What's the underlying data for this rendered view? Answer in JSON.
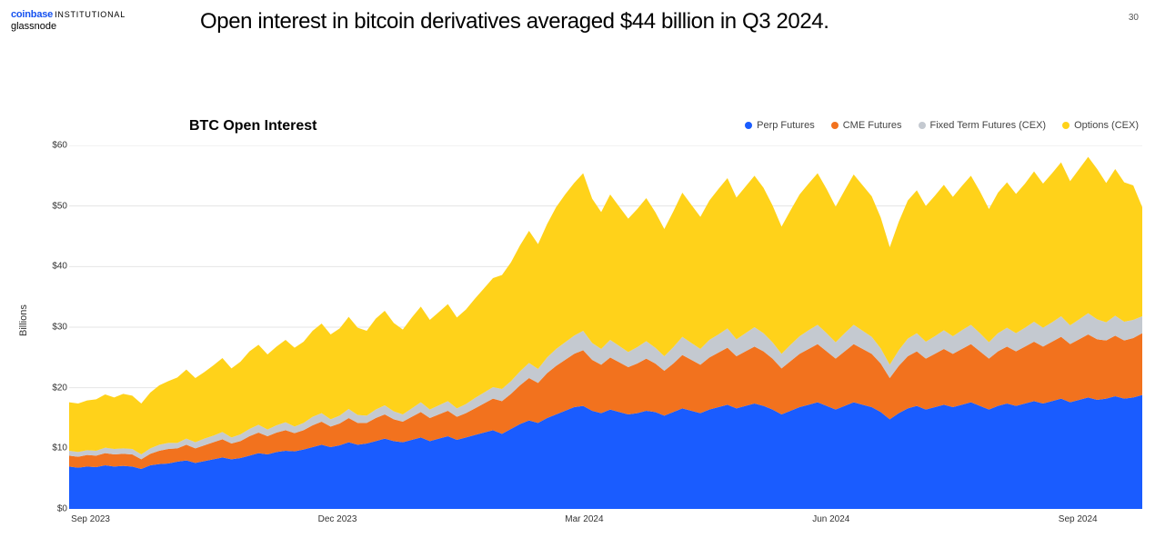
{
  "page_number": "30",
  "logo": {
    "coinbase": "coinbase",
    "institutional": "INSTITUTIONAL",
    "glassnode": "glassnode"
  },
  "headline": "Open interest in bitcoin derivatives averaged $44 billion in Q3 2024.",
  "chart": {
    "type": "stacked-area",
    "title": "BTC Open Interest",
    "background_color": "#ffffff",
    "grid_color": "#e5e5e5",
    "baseline_color": "#bbbbbb",
    "ylabel": "Billions",
    "ylim": [
      0,
      60
    ],
    "ytick_step": 10,
    "ytick_labels": [
      "$0",
      "$10",
      "$20",
      "$30",
      "$40",
      "$50",
      "$60"
    ],
    "xtick_labels": [
      "Sep 2023",
      "Dec 2023",
      "Mar 2024",
      "Jun 2024",
      "Sep 2024"
    ],
    "xtick_positions": [
      0.02,
      0.25,
      0.48,
      0.71,
      0.94
    ],
    "n_points": 120,
    "legend": [
      {
        "label": "Perp Futures",
        "color": "#1a5cff"
      },
      {
        "label": "CME Futures",
        "color": "#f2721e"
      },
      {
        "label": "Fixed Term Futures (CEX)",
        "color": "#c4c9d0"
      },
      {
        "label": "Options (CEX)",
        "color": "#ffd21a"
      }
    ],
    "series": {
      "perp_futures": {
        "color": "#1a5cff",
        "values": [
          7.0,
          6.8,
          7.0,
          6.9,
          7.2,
          7.0,
          7.1,
          7.0,
          6.6,
          7.2,
          7.4,
          7.5,
          7.8,
          8.0,
          7.6,
          7.9,
          8.2,
          8.5,
          8.2,
          8.4,
          8.8,
          9.2,
          9.0,
          9.4,
          9.6,
          9.5,
          9.8,
          10.2,
          10.6,
          10.2,
          10.5,
          11.0,
          10.6,
          10.8,
          11.2,
          11.6,
          11.2,
          11.0,
          11.4,
          11.8,
          11.2,
          11.6,
          12.0,
          11.4,
          11.8,
          12.2,
          12.6,
          13.0,
          12.4,
          13.2,
          14.0,
          14.6,
          14.2,
          15.0,
          15.6,
          16.2,
          16.8,
          17.0,
          16.2,
          15.8,
          16.4,
          16.0,
          15.6,
          15.8,
          16.2,
          16.0,
          15.4,
          16.0,
          16.6,
          16.2,
          15.8,
          16.4,
          16.8,
          17.2,
          16.6,
          17.0,
          17.4,
          17.0,
          16.4,
          15.6,
          16.2,
          16.8,
          17.2,
          17.6,
          17.0,
          16.4,
          17.0,
          17.6,
          17.2,
          16.8,
          16.0,
          14.8,
          15.8,
          16.6,
          17.0,
          16.4,
          16.8,
          17.2,
          16.8,
          17.2,
          17.6,
          17.0,
          16.4,
          17.0,
          17.4,
          17.0,
          17.4,
          17.8,
          17.4,
          17.8,
          18.2,
          17.6,
          18.0,
          18.4,
          18.0,
          18.2,
          18.6,
          18.2,
          18.4,
          18.8
        ]
      },
      "cme_futures": {
        "color": "#f2721e",
        "values": [
          1.8,
          1.8,
          1.9,
          1.9,
          2.0,
          2.0,
          2.0,
          2.0,
          1.6,
          1.9,
          2.2,
          2.4,
          2.2,
          2.6,
          2.4,
          2.6,
          2.8,
          3.0,
          2.6,
          2.8,
          3.2,
          3.4,
          3.0,
          3.2,
          3.4,
          3.0,
          3.2,
          3.6,
          3.8,
          3.4,
          3.6,
          4.0,
          3.6,
          3.4,
          3.8,
          4.0,
          3.6,
          3.4,
          3.8,
          4.2,
          3.8,
          4.0,
          4.2,
          3.8,
          4.0,
          4.4,
          4.8,
          5.2,
          5.4,
          5.8,
          6.4,
          7.0,
          6.6,
          7.4,
          8.0,
          8.4,
          8.8,
          9.2,
          8.4,
          8.0,
          8.6,
          8.2,
          7.8,
          8.2,
          8.6,
          8.0,
          7.4,
          8.0,
          8.8,
          8.4,
          8.0,
          8.6,
          9.0,
          9.4,
          8.6,
          9.0,
          9.4,
          9.0,
          8.4,
          7.6,
          8.2,
          8.8,
          9.2,
          9.6,
          9.0,
          8.4,
          9.0,
          9.6,
          9.2,
          8.8,
          8.0,
          6.8,
          7.8,
          8.6,
          9.0,
          8.4,
          8.8,
          9.2,
          8.8,
          9.2,
          9.6,
          9.0,
          8.4,
          9.0,
          9.4,
          9.0,
          9.4,
          9.8,
          9.4,
          9.8,
          10.2,
          9.6,
          10.0,
          10.4,
          10.0,
          9.6,
          10.0,
          9.6,
          9.8,
          10.2
        ]
      },
      "fixed_term": {
        "color": "#c4c9d0",
        "values": [
          0.8,
          0.8,
          0.8,
          0.8,
          0.9,
          0.9,
          0.9,
          0.9,
          0.8,
          0.9,
          1.0,
          1.0,
          0.9,
          1.0,
          1.0,
          1.1,
          1.1,
          1.2,
          1.0,
          1.1,
          1.2,
          1.3,
          1.1,
          1.2,
          1.3,
          1.1,
          1.2,
          1.4,
          1.4,
          1.2,
          1.3,
          1.5,
          1.3,
          1.2,
          1.4,
          1.5,
          1.3,
          1.2,
          1.4,
          1.6,
          1.4,
          1.5,
          1.6,
          1.4,
          1.5,
          1.7,
          1.8,
          1.9,
          2.0,
          2.1,
          2.3,
          2.5,
          2.3,
          2.6,
          2.8,
          2.9,
          3.0,
          3.2,
          2.8,
          2.6,
          2.9,
          2.7,
          2.5,
          2.7,
          2.9,
          2.6,
          2.4,
          2.7,
          3.0,
          2.8,
          2.6,
          2.9,
          3.0,
          3.2,
          2.8,
          3.0,
          3.2,
          3.0,
          2.7,
          2.4,
          2.7,
          2.9,
          3.1,
          3.2,
          3.0,
          2.7,
          3.0,
          3.2,
          3.0,
          2.8,
          2.5,
          2.2,
          2.6,
          2.9,
          3.0,
          2.8,
          2.9,
          3.1,
          2.9,
          3.1,
          3.2,
          3.0,
          2.7,
          3.0,
          3.1,
          3.0,
          3.1,
          3.3,
          3.1,
          3.2,
          3.4,
          3.1,
          3.3,
          3.5,
          3.3,
          3.0,
          3.3,
          3.1,
          3.0,
          2.8
        ]
      },
      "options": {
        "color": "#ffd21a",
        "values": [
          8.0,
          8.0,
          8.2,
          8.5,
          8.8,
          8.5,
          9.0,
          8.8,
          8.4,
          9.2,
          9.8,
          10.2,
          10.8,
          11.4,
          10.6,
          11.0,
          11.6,
          12.2,
          11.4,
          12.0,
          12.8,
          13.2,
          12.4,
          13.0,
          13.6,
          13.0,
          13.4,
          14.2,
          14.8,
          14.0,
          14.4,
          15.2,
          14.4,
          14.0,
          15.0,
          15.6,
          14.6,
          14.0,
          15.0,
          15.8,
          14.8,
          15.4,
          16.0,
          15.0,
          15.6,
          16.4,
          17.2,
          18.0,
          18.8,
          19.6,
          20.8,
          21.8,
          20.6,
          22.0,
          23.4,
          24.4,
          25.2,
          26.0,
          23.8,
          22.6,
          24.0,
          23.0,
          22.0,
          22.8,
          23.6,
          22.4,
          21.0,
          22.4,
          23.8,
          22.8,
          21.8,
          23.0,
          24.0,
          24.8,
          23.4,
          24.2,
          25.0,
          24.0,
          22.6,
          21.0,
          22.2,
          23.4,
          24.2,
          25.0,
          23.8,
          22.4,
          23.6,
          24.8,
          24.0,
          23.2,
          21.6,
          19.4,
          21.2,
          22.8,
          23.6,
          22.4,
          23.2,
          24.0,
          23.0,
          23.8,
          24.6,
          23.4,
          22.0,
          23.2,
          24.0,
          23.0,
          23.8,
          24.8,
          23.8,
          24.6,
          25.4,
          23.8,
          24.8,
          25.8,
          24.8,
          23.0,
          24.2,
          23.0,
          22.2,
          18.0
        ]
      }
    }
  }
}
